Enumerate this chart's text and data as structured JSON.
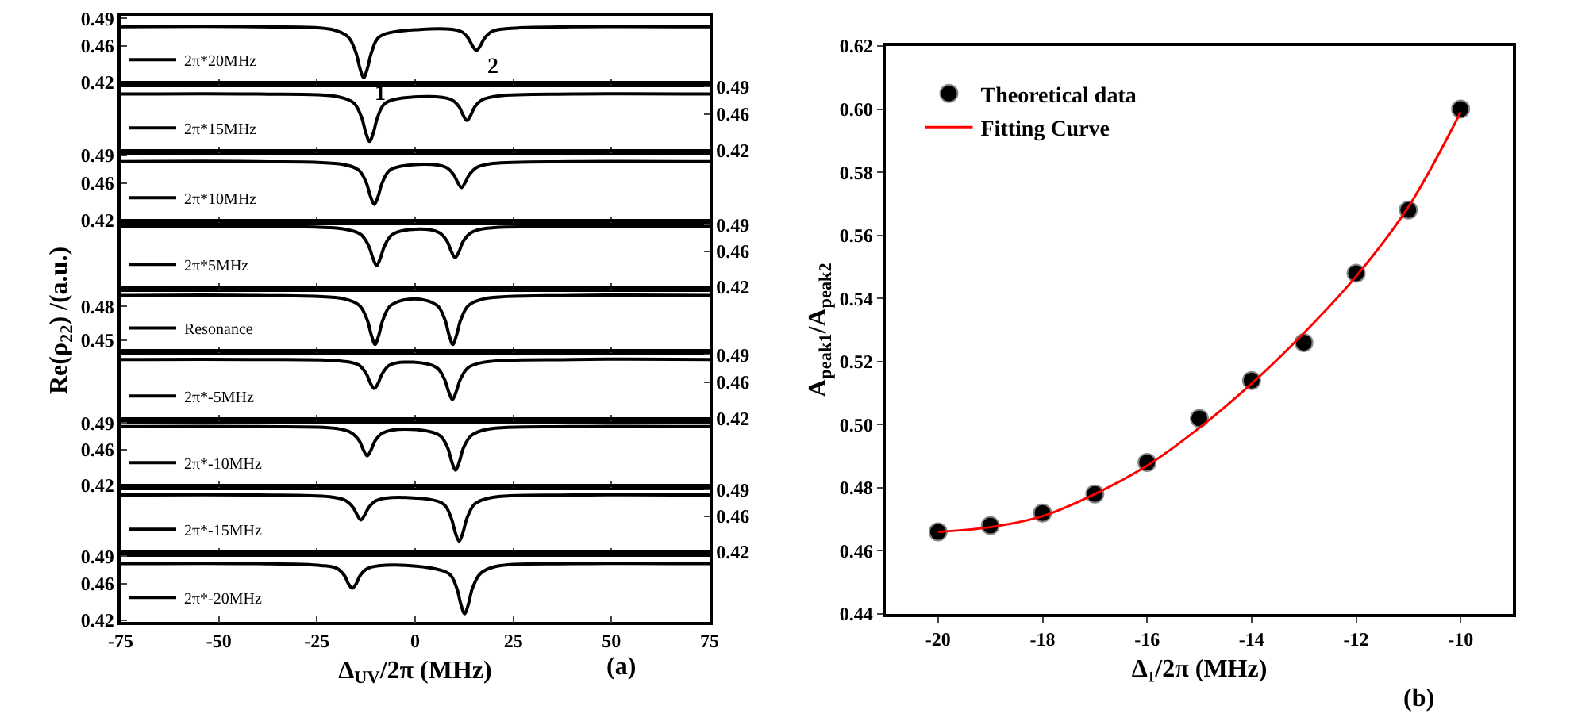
{
  "chart_data": [
    {
      "type": "line",
      "xlim": [
        -75,
        75
      ],
      "xticks": [
        -75,
        -50,
        -25,
        0,
        25,
        50,
        75
      ],
      "ylim": [
        0.418,
        0.493
      ],
      "yticks": [
        0.42,
        0.46,
        0.49
      ],
      "tick_labels": "y",
      "legend": "bottom left",
      "annotations": [
        {
          "text": "1",
          "x": -13.1,
          "y": 0.425
        },
        {
          "text": "2",
          "x": 15.6,
          "y": 0.455
        }
      ],
      "series": [
        {
          "name": "2π*20MHz",
          "color": "#000000",
          "x": [
            -75,
            -40,
            -21.1,
            -17.1,
            -15.1,
            -14.1,
            -13.1,
            -12.1,
            -11.1,
            -9.1,
            1.2,
            11.6,
            13.6,
            14.6,
            15.6,
            16.6,
            17.6,
            19.6,
            23.6,
            40,
            75
          ],
          "values": [
            0.481,
            0.481,
            0.478,
            0.47,
            0.453,
            0.436,
            0.425,
            0.436,
            0.453,
            0.47,
            0.478,
            0.476,
            0.468,
            0.46,
            0.455,
            0.46,
            0.468,
            0.476,
            0.479,
            0.481,
            0.481
          ]
        }
      ]
    },
    {
      "type": "line",
      "xlim": [
        -75,
        75
      ],
      "xticks": [
        -75,
        -50,
        -25,
        0,
        25,
        50,
        75
      ],
      "y2lim": [
        0.418,
        0.493
      ],
      "y2ticks": [
        0.42,
        0.46,
        0.49
      ],
      "tick_labels": "y",
      "legend": "bottom left",
      "series": [
        {
          "name": "2π*15MHz",
          "color": "#000000",
          "axis": "y2",
          "x": [
            -75,
            -40,
            -19.6,
            -15.6,
            -13.6,
            -12.6,
            -11.6,
            -10.6,
            -9.6,
            -7.6,
            0.8,
            9.2,
            11.2,
            12.2,
            13.2,
            14.2,
            15.2,
            17.2,
            21.2,
            40,
            75
          ],
          "values": [
            0.482,
            0.482,
            0.479,
            0.472,
            0.456,
            0.44,
            0.43,
            0.44,
            0.456,
            0.472,
            0.479,
            0.476,
            0.468,
            0.459,
            0.453,
            0.459,
            0.468,
            0.476,
            0.48,
            0.482,
            0.482
          ]
        }
      ]
    },
    {
      "type": "line",
      "xlim": [
        -75,
        75
      ],
      "xticks": [
        -75,
        -50,
        -25,
        0,
        25,
        50,
        75
      ],
      "ylim": [
        0.418,
        0.493
      ],
      "yticks": [
        0.42,
        0.46,
        0.49
      ],
      "tick_labels": "y",
      "legend": "bottom left",
      "series": [
        {
          "name": "2π*10MHz",
          "color": "#000000",
          "x": [
            -75,
            -40,
            -18.4,
            -14.4,
            -12.4,
            -11.4,
            -10.4,
            -9.4,
            -8.4,
            -6.4,
            0.7,
            7.8,
            9.8,
            10.8,
            11.8,
            12.8,
            13.8,
            15.8,
            19.8,
            40,
            75
          ],
          "values": [
            0.483,
            0.483,
            0.48,
            0.474,
            0.46,
            0.446,
            0.437,
            0.446,
            0.46,
            0.474,
            0.48,
            0.477,
            0.469,
            0.461,
            0.455,
            0.461,
            0.469,
            0.477,
            0.481,
            0.483,
            0.483
          ]
        }
      ]
    },
    {
      "type": "line",
      "xlim": [
        -75,
        75
      ],
      "xticks": [
        -75,
        -50,
        -25,
        0,
        25,
        50,
        75
      ],
      "y2lim": [
        0.418,
        0.493
      ],
      "y2ticks": [
        0.42,
        0.46,
        0.49
      ],
      "tick_labels": "y",
      "legend": "bottom left",
      "series": [
        {
          "name": "2π*5MHz",
          "color": "#000000",
          "axis": "y2",
          "x": [
            -75,
            -40,
            -17.8,
            -13.8,
            -11.8,
            -10.8,
            -9.8,
            -8.8,
            -7.8,
            -5.8,
            0.2,
            6.2,
            8.2,
            9.2,
            10.2,
            11.2,
            12.2,
            14.2,
            18.2,
            40,
            75
          ],
          "values": [
            0.488,
            0.488,
            0.485,
            0.479,
            0.466,
            0.453,
            0.444,
            0.453,
            0.466,
            0.479,
            0.485,
            0.481,
            0.471,
            0.46,
            0.453,
            0.46,
            0.471,
            0.481,
            0.486,
            0.488,
            0.488
          ]
        }
      ]
    },
    {
      "type": "line",
      "xlim": [
        -75,
        75
      ],
      "xticks": [
        -75,
        -50,
        -25,
        0,
        25,
        50,
        75
      ],
      "ylim": [
        0.439,
        0.496
      ],
      "yticks": [
        0.45,
        0.48
      ],
      "tick_labels": "y",
      "legend": "bottom left",
      "ylabel": "Re(ρ$_{22}$) /(a.u.)",
      "series": [
        {
          "name": "Resonance",
          "color": "#000000",
          "x": [
            -75,
            -40,
            -18.2,
            -14.2,
            -12.2,
            -11.2,
            -10.2,
            -9.2,
            -8.2,
            -6.2,
            -0.3,
            5.6,
            7.6,
            8.6,
            9.6,
            10.6,
            11.6,
            13.6,
            17.6,
            40,
            75
          ],
          "values": [
            0.49,
            0.49,
            0.487,
            0.481,
            0.468,
            0.455,
            0.446,
            0.455,
            0.468,
            0.481,
            0.487,
            0.481,
            0.468,
            0.455,
            0.446,
            0.455,
            0.468,
            0.481,
            0.487,
            0.49,
            0.49
          ]
        }
      ]
    },
    {
      "type": "line",
      "xlim": [
        -75,
        75
      ],
      "xticks": [
        -75,
        -50,
        -25,
        0,
        25,
        50,
        75
      ],
      "y2lim": [
        0.418,
        0.493
      ],
      "y2ticks": [
        0.42,
        0.46,
        0.49
      ],
      "tick_labels": "y",
      "legend": "bottom left",
      "series": [
        {
          "name": "2π*-5MHz",
          "color": "#000000",
          "axis": "y2",
          "x": [
            -75,
            -40,
            -18.4,
            -14.4,
            -12.4,
            -11.4,
            -10.4,
            -9.4,
            -8.4,
            -6.4,
            -0.5,
            5.5,
            7.5,
            8.5,
            9.5,
            10.5,
            11.5,
            13.5,
            17.5,
            40,
            75
          ],
          "values": [
            0.485,
            0.485,
            0.483,
            0.479,
            0.469,
            0.459,
            0.453,
            0.459,
            0.469,
            0.479,
            0.482,
            0.476,
            0.463,
            0.45,
            0.441,
            0.45,
            0.463,
            0.476,
            0.482,
            0.485,
            0.485
          ]
        }
      ]
    },
    {
      "type": "line",
      "xlim": [
        -75,
        75
      ],
      "xticks": [
        -75,
        -50,
        -25,
        0,
        25,
        50,
        75
      ],
      "ylim": [
        0.418,
        0.493
      ],
      "yticks": [
        0.42,
        0.46,
        0.49
      ],
      "tick_labels": "y",
      "legend": "bottom left",
      "series": [
        {
          "name": "2π*-10MHz",
          "color": "#000000",
          "x": [
            -75,
            -40,
            -20.2,
            -16.2,
            -14.2,
            -13.2,
            -12.2,
            -11.2,
            -10.2,
            -8.2,
            -1.0,
            6.3,
            8.3,
            9.3,
            10.3,
            11.3,
            12.3,
            14.3,
            18.3,
            40,
            75
          ],
          "values": [
            0.486,
            0.486,
            0.484,
            0.479,
            0.47,
            0.46,
            0.453,
            0.46,
            0.47,
            0.479,
            0.483,
            0.476,
            0.462,
            0.447,
            0.437,
            0.447,
            0.462,
            0.476,
            0.483,
            0.486,
            0.486
          ]
        }
      ]
    },
    {
      "type": "line",
      "xlim": [
        -75,
        75
      ],
      "xticks": [
        -75,
        -50,
        -25,
        0,
        25,
        50,
        75
      ],
      "y2lim": [
        0.418,
        0.493
      ],
      "y2ticks": [
        0.42,
        0.46,
        0.49
      ],
      "tick_labels": "y",
      "legend": "bottom left",
      "series": [
        {
          "name": "2π*-15MHz",
          "color": "#000000",
          "axis": "y2",
          "x": [
            -75,
            -40,
            -21.8,
            -17.8,
            -15.8,
            -14.8,
            -13.8,
            -12.8,
            -11.8,
            -9.8,
            -1.3,
            7.2,
            9.2,
            10.2,
            11.2,
            12.2,
            13.2,
            15.2,
            19.2,
            40,
            75
          ],
          "values": [
            0.484,
            0.484,
            0.482,
            0.478,
            0.47,
            0.462,
            0.456,
            0.462,
            0.47,
            0.478,
            0.481,
            0.474,
            0.458,
            0.442,
            0.432,
            0.442,
            0.458,
            0.474,
            0.481,
            0.484,
            0.484
          ]
        }
      ]
    },
    {
      "type": "line",
      "xlim": [
        -75,
        75
      ],
      "xticks": [
        -75,
        -50,
        -25,
        0,
        25,
        50,
        75
      ],
      "ylim": [
        0.418,
        0.493
      ],
      "yticks": [
        0.42,
        0.46,
        0.49
      ],
      "legend": "bottom left",
      "xlabel": "Δ$_{UV}$/2π (MHz)",
      "annotations": [
        "(a)"
      ],
      "series": [
        {
          "name": "2π*-20MHz",
          "color": "#000000",
          "x": [
            -75,
            -40,
            -24,
            -20,
            -18,
            -17,
            -16,
            -15,
            -14,
            -12,
            -1.7,
            8.6,
            10.6,
            11.6,
            12.6,
            13.6,
            14.6,
            16.6,
            20.6,
            40,
            75
          ],
          "values": [
            0.482,
            0.482,
            0.48,
            0.477,
            0.469,
            0.46,
            0.455,
            0.46,
            0.469,
            0.477,
            0.48,
            0.471,
            0.455,
            0.438,
            0.427,
            0.438,
            0.455,
            0.471,
            0.479,
            0.482,
            0.482
          ]
        }
      ]
    },
    {
      "type": "scatter",
      "xlim": [
        -21,
        -9
      ],
      "xticks": [
        -20,
        -18,
        -16,
        -14,
        -12,
        -10
      ],
      "ylim": [
        0.44,
        0.62
      ],
      "yticks": [
        0.44,
        0.46,
        0.48,
        {
          "value": 0.5,
          "label": "0.50"
        },
        0.52,
        0.54,
        0.56,
        0.58,
        {
          "value": 0.6,
          "label": "0.60"
        },
        0.62
      ],
      "xlabel": "Δ₁/2π (MHz)",
      "ylabel": "A$_{peak1}$/A$_{peak2}$",
      "legend": "top left",
      "annotations": [
        "(b)"
      ],
      "series": [
        {
          "name": "Theoretical data",
          "type": "scatter",
          "color": "#000000",
          "x": [
            -20,
            -19,
            -18,
            -17,
            -16,
            -15,
            -14,
            -13,
            -12,
            -11,
            -10
          ],
          "values": [
            0.466,
            0.468,
            0.472,
            0.478,
            0.488,
            0.502,
            0.514,
            0.526,
            0.548,
            0.568,
            0.6
          ]
        },
        {
          "name": "Fitting Curve",
          "type": "line",
          "color": "#ff0000",
          "x": [
            -20,
            -19,
            -18,
            -17,
            -16,
            -15,
            -14,
            -13,
            -12,
            -11,
            -10
          ],
          "values": [
            0.466,
            0.4675,
            0.471,
            0.478,
            0.487,
            0.499,
            0.513,
            0.529,
            0.547,
            0.569,
            0.599
          ]
        }
      ]
    }
  ]
}
